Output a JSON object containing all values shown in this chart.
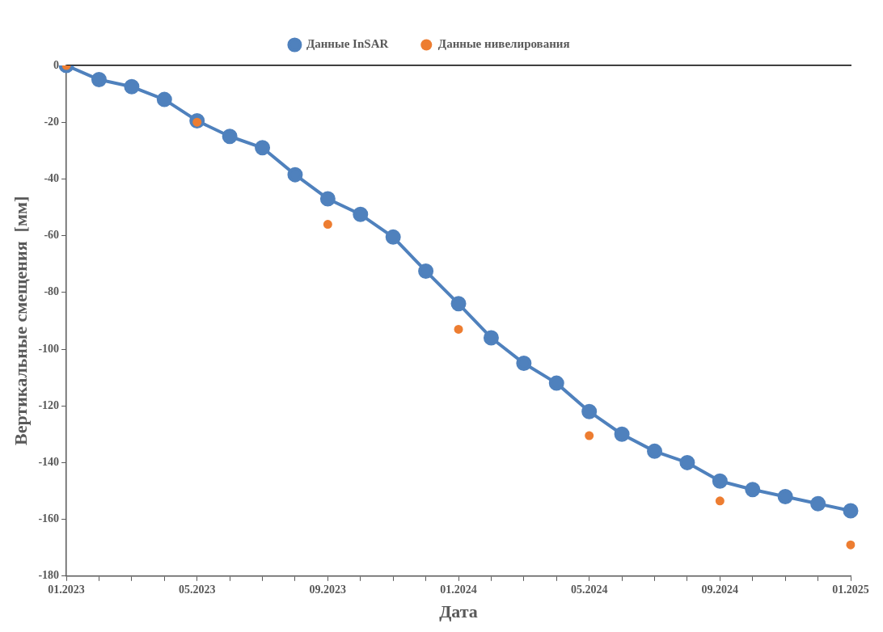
{
  "chart_data": {
    "type": "line",
    "xlabel": "Дата",
    "ylabel": "Вертикальные смещения  [мм]",
    "categories": [
      "01.2023",
      null,
      null,
      null,
      "05.2023",
      null,
      null,
      null,
      "09.2023",
      null,
      null,
      null,
      "01.2024",
      null,
      null,
      null,
      "05.2024",
      null,
      null,
      null,
      "09.2024",
      null,
      null,
      null,
      "01.2025"
    ],
    "series": [
      {
        "name": "Данные InSAR",
        "color": "#4f81bd",
        "marker": "circle",
        "values": [
          0,
          -5,
          -7.5,
          -12,
          -19.5,
          -25,
          -29,
          -38.5,
          -47,
          -52.5,
          -60.5,
          -72.5,
          -84,
          -96,
          -105,
          -112,
          -122,
          -130,
          -136,
          -140,
          -146.5,
          -149.5,
          -152,
          -154.5,
          -157
        ]
      },
      {
        "name": "Данные нивелирования",
        "type": "scatter",
        "color": "#ed7d31",
        "marker": "circle",
        "x": [
          "01.2023",
          "05.2023",
          "09.2023",
          "01.2024",
          "05.2024",
          "09.2024",
          "01.2025"
        ],
        "values": [
          0,
          -20,
          -56,
          -93,
          -130.5,
          -153.5,
          -169
        ]
      }
    ],
    "ylim": [
      -180,
      0
    ],
    "yticks": [
      -180,
      -160,
      -140,
      -120,
      -100,
      -80,
      -60,
      -40,
      -20,
      0
    ],
    "grid": false,
    "legend": "top"
  }
}
